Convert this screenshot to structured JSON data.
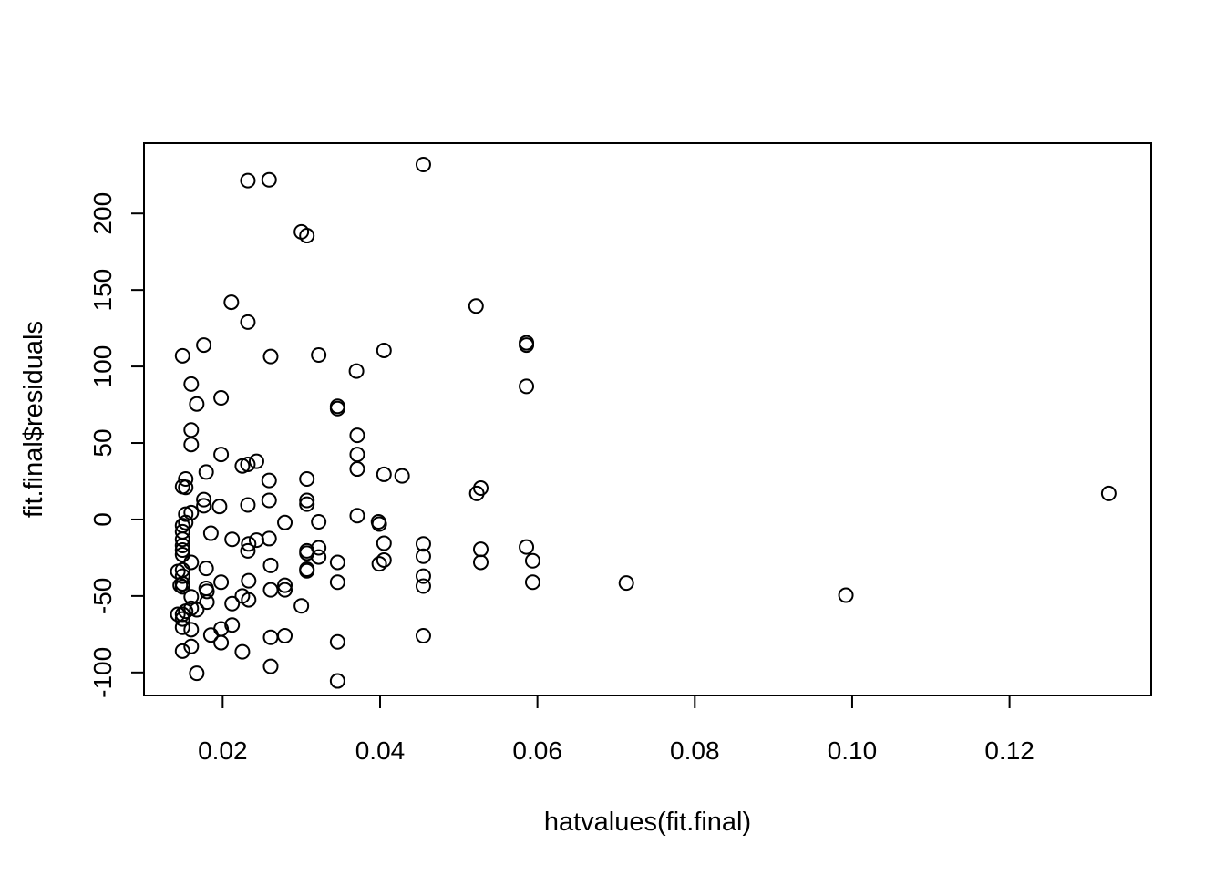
{
  "chart_data": {
    "type": "scatter",
    "title": "",
    "xlabel": "hatvalues(fit.final)",
    "ylabel": "fit.final$residuals",
    "xlim": [
      0.01,
      0.138
    ],
    "ylim": [
      -115,
      246
    ],
    "x_ticks": [
      0.02,
      0.04,
      0.06,
      0.08,
      0.1,
      0.12
    ],
    "x_tick_labels": [
      "0.02",
      "0.04",
      "0.06",
      "0.08",
      "0.10",
      "0.12"
    ],
    "y_ticks": [
      -100,
      -50,
      0,
      50,
      100,
      150,
      200
    ],
    "y_tick_labels": [
      "-100",
      "-50",
      "0",
      "50",
      "100",
      "150",
      "200"
    ],
    "grid": false,
    "legend": "none",
    "marker": "open-circle",
    "color": "#000000",
    "points": [
      [
        0.0232,
        221.5
      ],
      [
        0.0259,
        222
      ],
      [
        0.0455,
        232
      ],
      [
        0.03,
        188
      ],
      [
        0.0307,
        185.5
      ],
      [
        0.0211,
        142
      ],
      [
        0.0232,
        129
      ],
      [
        0.0522,
        139.5
      ],
      [
        0.0586,
        115.5
      ],
      [
        0.0586,
        114
      ],
      [
        0.0149,
        107
      ],
      [
        0.0176,
        114
      ],
      [
        0.0261,
        106.5
      ],
      [
        0.0322,
        107.5
      ],
      [
        0.0405,
        110.5
      ],
      [
        0.037,
        97
      ],
      [
        0.016,
        88.5
      ],
      [
        0.0586,
        87
      ],
      [
        0.0198,
        79.5
      ],
      [
        0.0167,
        75.5
      ],
      [
        0.0346,
        74
      ],
      [
        0.0346,
        72.5
      ],
      [
        0.016,
        58.5
      ],
      [
        0.0371,
        55
      ],
      [
        0.016,
        49
      ],
      [
        0.0198,
        42.5
      ],
      [
        0.0371,
        42.5
      ],
      [
        0.0243,
        38
      ],
      [
        0.0232,
        36
      ],
      [
        0.0225,
        35
      ],
      [
        0.0371,
        33
      ],
      [
        0.0179,
        31
      ],
      [
        0.0405,
        29.5
      ],
      [
        0.0428,
        28.5
      ],
      [
        0.0153,
        26.5
      ],
      [
        0.0259,
        25.5
      ],
      [
        0.0307,
        26.5
      ],
      [
        0.0149,
        21.5
      ],
      [
        0.0153,
        21
      ],
      [
        0.0528,
        20.5
      ],
      [
        0.0523,
        17
      ],
      [
        0.1326,
        17
      ],
      [
        0.0176,
        13
      ],
      [
        0.0259,
        12.5
      ],
      [
        0.0307,
        12.5
      ],
      [
        0.0307,
        10
      ],
      [
        0.0176,
        9
      ],
      [
        0.0196,
        8.5
      ],
      [
        0.0232,
        9.5
      ],
      [
        0.016,
        4.5
      ],
      [
        0.0153,
        3.5
      ],
      [
        0.0371,
        2.5
      ],
      [
        0.0153,
        -2
      ],
      [
        0.0149,
        -4
      ],
      [
        0.0279,
        -2
      ],
      [
        0.0322,
        -1.5
      ],
      [
        0.0398,
        -1.5
      ],
      [
        0.0399,
        -3
      ],
      [
        0.0149,
        -8
      ],
      [
        0.0185,
        -9
      ],
      [
        0.0149,
        -13
      ],
      [
        0.0212,
        -13
      ],
      [
        0.0243,
        -13.5
      ],
      [
        0.0259,
        -12.5
      ],
      [
        0.0149,
        -17
      ],
      [
        0.0233,
        -16
      ],
      [
        0.0405,
        -15.5
      ],
      [
        0.0455,
        -16
      ],
      [
        0.0586,
        -18
      ],
      [
        0.0149,
        -20
      ],
      [
        0.0232,
        -20.5
      ],
      [
        0.0307,
        -20.5
      ],
      [
        0.0322,
        -18.5
      ],
      [
        0.0528,
        -19.5
      ],
      [
        0.0149,
        -23
      ],
      [
        0.0307,
        -22
      ],
      [
        0.0322,
        -24.5
      ],
      [
        0.0455,
        -24
      ],
      [
        0.016,
        -28
      ],
      [
        0.0261,
        -30
      ],
      [
        0.0346,
        -28
      ],
      [
        0.0405,
        -26.5
      ],
      [
        0.0399,
        -29
      ],
      [
        0.0528,
        -28
      ],
      [
        0.0594,
        -27
      ],
      [
        0.0149,
        -33
      ],
      [
        0.0143,
        -34
      ],
      [
        0.0179,
        -32
      ],
      [
        0.0307,
        -32.5
      ],
      [
        0.0307,
        -33.5
      ],
      [
        0.0149,
        -37
      ],
      [
        0.0455,
        -37
      ],
      [
        0.0149,
        -42
      ],
      [
        0.0146,
        -43
      ],
      [
        0.0149,
        -44
      ],
      [
        0.0198,
        -41
      ],
      [
        0.0233,
        -40
      ],
      [
        0.0279,
        -43
      ],
      [
        0.0346,
        -41
      ],
      [
        0.0594,
        -41
      ],
      [
        0.0713,
        -41.5
      ],
      [
        0.0455,
        -43.5
      ],
      [
        0.0179,
        -45
      ],
      [
        0.018,
        -47
      ],
      [
        0.0261,
        -46
      ],
      [
        0.0279,
        -46
      ],
      [
        0.0992,
        -49.5
      ],
      [
        0.016,
        -50.5
      ],
      [
        0.0225,
        -50
      ],
      [
        0.0233,
        -52.5
      ],
      [
        0.018,
        -54
      ],
      [
        0.0212,
        -55
      ],
      [
        0.03,
        -56.5
      ],
      [
        0.016,
        -58
      ],
      [
        0.0167,
        -59
      ],
      [
        0.0153,
        -60
      ],
      [
        0.0149,
        -62
      ],
      [
        0.0143,
        -62
      ],
      [
        0.0149,
        -65
      ],
      [
        0.0212,
        -69
      ],
      [
        0.0149,
        -70.5
      ],
      [
        0.0198,
        -71.5
      ],
      [
        0.016,
        -72
      ],
      [
        0.0185,
        -75.5
      ],
      [
        0.0261,
        -77
      ],
      [
        0.0279,
        -76
      ],
      [
        0.0455,
        -76
      ],
      [
        0.0198,
        -80.5
      ],
      [
        0.0346,
        -80
      ],
      [
        0.016,
        -83
      ],
      [
        0.0149,
        -86
      ],
      [
        0.0225,
        -86.5
      ],
      [
        0.0261,
        -96
      ],
      [
        0.0167,
        -100.5
      ],
      [
        0.0346,
        -105.5
      ]
    ]
  }
}
